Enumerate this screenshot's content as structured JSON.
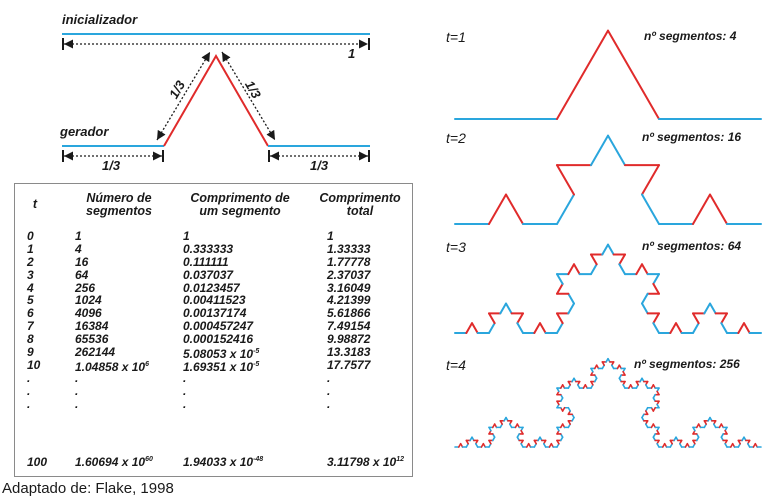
{
  "colors": {
    "blue": "#2aa6dd",
    "red": "#e02b2b",
    "black": "#1a1a1a"
  },
  "diagram": {
    "initializer_label": "inicializador",
    "initializer_length": "1",
    "generator_label": "gerador",
    "segment_fraction": "1/3"
  },
  "iterations": [
    {
      "t_label": "t=1",
      "segments_label": "nº segmentos: 4"
    },
    {
      "t_label": "t=2",
      "segments_label": "nº segmentos: 16"
    },
    {
      "t_label": "t=3",
      "segments_label": "nº segmentos: 64"
    },
    {
      "t_label": "t=4",
      "segments_label": "nº segmentos: 256"
    }
  ],
  "table": {
    "headers": {
      "t": "t",
      "segments_line1": "Número de",
      "segments_line2": "segmentos",
      "length_line1": "Comprimento de",
      "length_line2": "um segmento",
      "total_line1": "Comprimento",
      "total_line2": "total"
    },
    "rows": [
      {
        "t": "0",
        "n": "1",
        "len": "1",
        "total": "1"
      },
      {
        "t": "1",
        "n": "4",
        "len": "0.333333",
        "total": "1.33333"
      },
      {
        "t": "2",
        "n": "16",
        "len": "0.111111",
        "total": "1.77778"
      },
      {
        "t": "3",
        "n": "64",
        "len": "0.037037",
        "total": "2.37037"
      },
      {
        "t": "4",
        "n": "256",
        "len": "0.0123457",
        "total": "3.16049"
      },
      {
        "t": "5",
        "n": "1024",
        "len": "0.00411523",
        "total": "4.21399"
      },
      {
        "t": "6",
        "n": "4096",
        "len": "0.00137174",
        "total": "5.61866"
      },
      {
        "t": "7",
        "n": "16384",
        "len": "0.000457247",
        "total": "7.49154"
      },
      {
        "t": "8",
        "n": "65536",
        "len": "0.000152416",
        "total": "9.98872"
      },
      {
        "t": "9",
        "n": "262144",
        "len_base": "5.08053 x 10",
        "len_exp": "-5",
        "total": "13.3183"
      },
      {
        "t": "10",
        "n_base": "1.04858 x 10",
        "n_exp": "6",
        "len_base": "1.69351 x 10",
        "len_exp": "-5",
        "total": "17.7577"
      }
    ],
    "ellipsis": ".",
    "last_row": {
      "t": "100",
      "n_base": "1.60694 x 10",
      "n_exp": "60",
      "len_base": "1.94033 x 10",
      "len_exp": "-48",
      "total_base": "3.11798 x 10",
      "total_exp": "12"
    }
  },
  "source": "Adaptado de: Flake, 1998"
}
